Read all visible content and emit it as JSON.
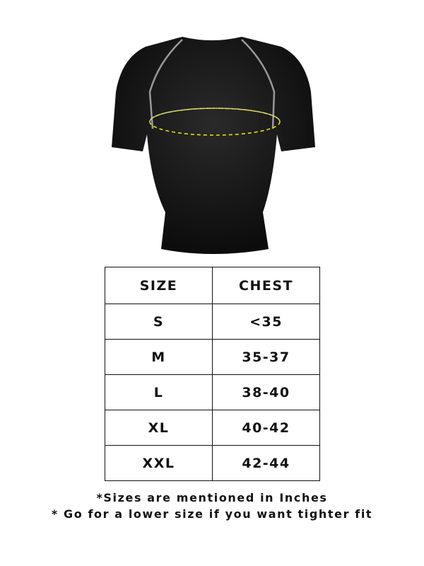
{
  "product_image": {
    "measure_line_color": "#e8e000",
    "seam_color": "#9a9a9a",
    "shirt_color": "#1a1a1a"
  },
  "table": {
    "headers": [
      "SIZE",
      "CHEST"
    ],
    "rows": [
      [
        "S",
        "<35"
      ],
      [
        "M",
        "35-37"
      ],
      [
        "L",
        "38-40"
      ],
      [
        "XL",
        "40-42"
      ],
      [
        "XXL",
        "42-44"
      ]
    ]
  },
  "notes": [
    "*Sizes are mentioned in Inches",
    "* Go for a lower size if you want tighter fit"
  ]
}
